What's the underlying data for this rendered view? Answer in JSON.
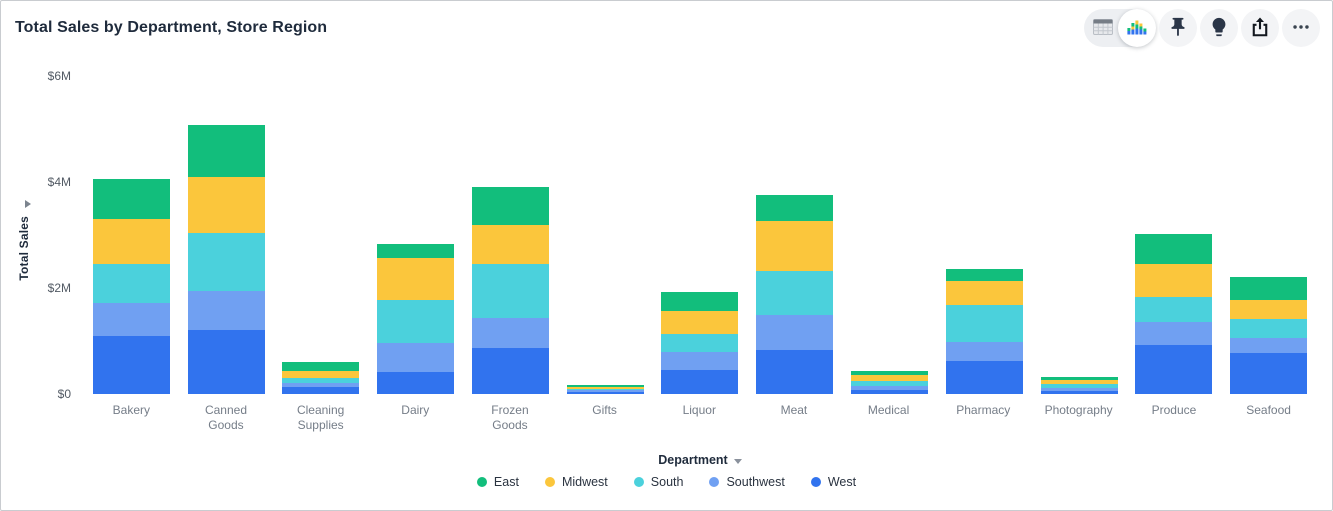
{
  "header": {
    "title": "Total Sales by Department, Store Region"
  },
  "toolbar": {
    "view_toggle": {
      "options": [
        "table",
        "chart"
      ],
      "active": "chart"
    },
    "buttons": [
      "pin",
      "lightbulb",
      "share",
      "more-options"
    ],
    "icon_names": [
      "table-view-icon",
      "chart-view-icon",
      "pin-icon",
      "lightbulb-icon",
      "share-icon",
      "more-icon"
    ]
  },
  "colors": {
    "east": "#12BE7C",
    "midwest": "#FBC63C",
    "south": "#4BD1DC",
    "southwest": "#70A0F2",
    "west": "#3173EE",
    "title_text": "#1F2B3C",
    "axis_text": "#525A64",
    "category_text": "#757D88"
  },
  "chart_data": {
    "type": "bar",
    "stacked": true,
    "title": "Total Sales by Department, Store Region",
    "xlabel": "Department",
    "ylabel": "Total Sales",
    "units": "millions USD",
    "ylim": [
      0,
      6
    ],
    "yticks": [
      {
        "value": 0,
        "label": "$0"
      },
      {
        "value": 2,
        "label": "$2M"
      },
      {
        "value": 4,
        "label": "$4M"
      },
      {
        "value": 6,
        "label": "$6M"
      }
    ],
    "grid": false,
    "legend_position": "bottom",
    "stack_order_bottom_to_top": [
      "West",
      "Southwest",
      "South",
      "Midwest",
      "East"
    ],
    "categories": [
      "Bakery",
      "Canned Goods",
      "Cleaning Supplies",
      "Dairy",
      "Frozen Goods",
      "Gifts",
      "Liquor",
      "Meat",
      "Medical",
      "Pharmacy",
      "Photography",
      "Produce",
      "Seafood"
    ],
    "series": [
      {
        "name": "East",
        "color": "#12BE7C",
        "values": [
          0.75,
          0.97,
          0.17,
          0.28,
          0.73,
          0.04,
          0.36,
          0.5,
          0.08,
          0.21,
          0.06,
          0.56,
          0.44
        ]
      },
      {
        "name": "Midwest",
        "color": "#FBC63C",
        "values": [
          0.85,
          1.07,
          0.12,
          0.78,
          0.73,
          0.04,
          0.42,
          0.94,
          0.11,
          0.46,
          0.08,
          0.63,
          0.36
        ]
      },
      {
        "name": "South",
        "color": "#4BD1DC",
        "values": [
          0.73,
          1.08,
          0.1,
          0.81,
          1.02,
          0.03,
          0.35,
          0.82,
          0.09,
          0.7,
          0.08,
          0.47,
          0.35
        ]
      },
      {
        "name": "Southwest",
        "color": "#70A0F2",
        "values": [
          0.62,
          0.75,
          0.08,
          0.56,
          0.56,
          0.03,
          0.33,
          0.67,
          0.08,
          0.36,
          0.06,
          0.44,
          0.28
        ]
      },
      {
        "name": "West",
        "color": "#3173EE",
        "values": [
          1.1,
          1.2,
          0.13,
          0.41,
          0.87,
          0.04,
          0.46,
          0.83,
          0.08,
          0.62,
          0.05,
          0.92,
          0.78
        ]
      }
    ]
  }
}
